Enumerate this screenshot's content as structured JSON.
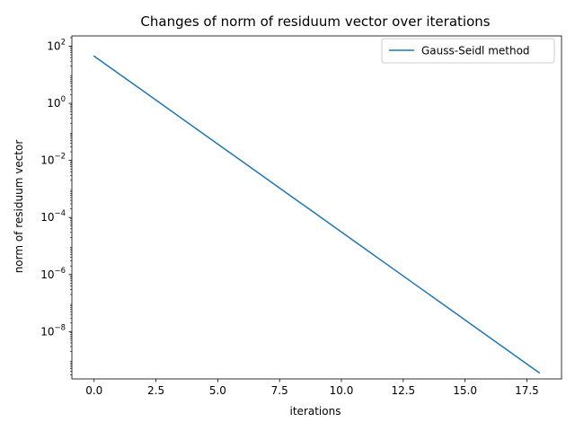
{
  "chart_data": {
    "type": "line",
    "title": "Changes of norm of residuum vector over iterations",
    "xlabel": "iterations",
    "ylabel": "norm of residuum vector",
    "yscale": "log",
    "xlim": [
      -0.9,
      18.9
    ],
    "ylim": [
      2.2e-10,
      230.0
    ],
    "x_ticks": [
      0.0,
      2.5,
      5.0,
      7.5,
      10.0,
      12.5,
      15.0,
      17.5
    ],
    "x_tick_labels": [
      "0.0",
      "2.5",
      "5.0",
      "7.5",
      "10.0",
      "12.5",
      "15.0",
      "17.5"
    ],
    "y_ticks": [
      100.0,
      1.0,
      0.01,
      0.0001,
      1e-06,
      1e-08
    ],
    "y_tick_labels": [
      {
        "base": "10",
        "exp": "2"
      },
      {
        "base": "10",
        "exp": "0"
      },
      {
        "base": "10",
        "exp": "−2"
      },
      {
        "base": "10",
        "exp": "−4"
      },
      {
        "base": "10",
        "exp": "−6"
      },
      {
        "base": "10",
        "exp": "−8"
      }
    ],
    "grid": false,
    "legend_position": "top-right",
    "series": [
      {
        "name": "Gauss-Seidl method",
        "color": "#1f77b4",
        "x": [
          0,
          1,
          2,
          3,
          4,
          5,
          6,
          7,
          8,
          9,
          10,
          11,
          12,
          13,
          14,
          15,
          16,
          17,
          18
        ],
        "y": [
          45,
          10.9,
          2.64,
          0.638,
          0.154,
          0.0373,
          0.00903,
          0.00218,
          0.000528,
          0.000128,
          3.09e-05,
          7.48e-06,
          1.81e-06,
          4.37e-07,
          1.06e-07,
          2.56e-08,
          6.18e-09,
          1.49e-09,
          3.6e-10
        ]
      }
    ]
  }
}
